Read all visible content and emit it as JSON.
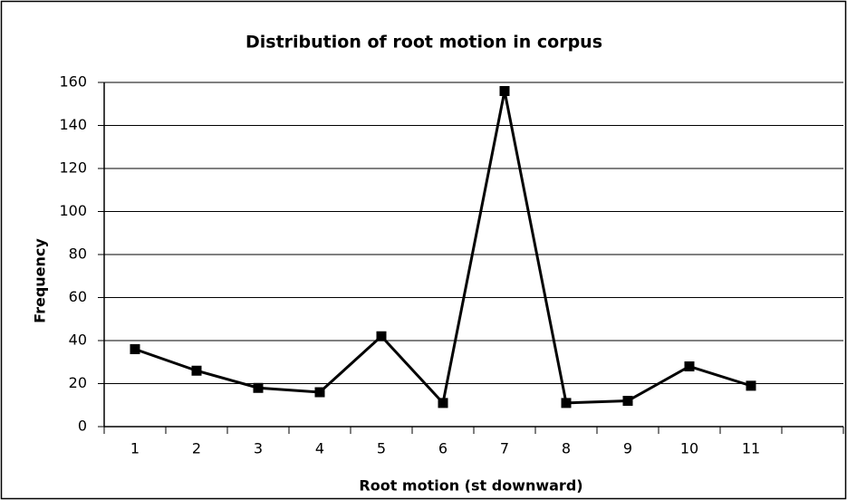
{
  "chart_data": {
    "type": "line",
    "title": "Distribution of root motion in corpus",
    "x_label": "Root motion (st downward)",
    "y_label": "Frequency",
    "categories": [
      "1",
      "2",
      "3",
      "4",
      "5",
      "6",
      "7",
      "8",
      "9",
      "10",
      "11",
      null
    ],
    "series": [
      {
        "name": "Frequency",
        "color": "#000000",
        "values": [
          36,
          26,
          18,
          16,
          42,
          11,
          156,
          11,
          12,
          28,
          19,
          null
        ]
      }
    ],
    "ylim": [
      0,
      160
    ],
    "yticks": [
      0,
      20,
      40,
      60,
      80,
      100,
      120,
      140,
      160
    ],
    "grid": true
  }
}
